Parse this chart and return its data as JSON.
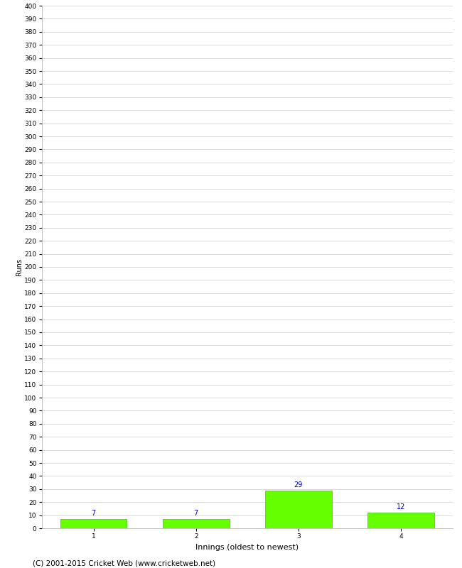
{
  "categories": [
    1,
    2,
    3,
    4
  ],
  "values": [
    7,
    7,
    29,
    12
  ],
  "bar_color": "#66ff00",
  "bar_edge_color": "#33cc00",
  "xlabel": "Innings (oldest to newest)",
  "ylabel": "Runs",
  "ylim": [
    0,
    400
  ],
  "ytick_step": 10,
  "annotation_color": "#0000cc",
  "annotation_fontsize": 7,
  "xlabel_fontsize": 8,
  "ylabel_fontsize": 7,
  "tick_fontsize": 6.5,
  "footer": "(C) 2001-2015 Cricket Web (www.cricketweb.net)",
  "footer_fontsize": 7.5,
  "background_color": "#ffffff",
  "grid_color": "#cccccc"
}
